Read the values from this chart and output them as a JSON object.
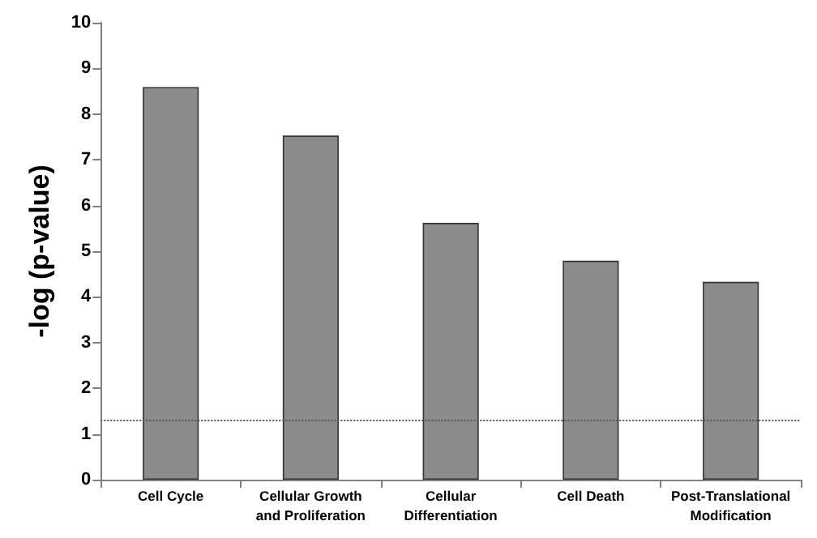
{
  "chart_data": {
    "type": "bar",
    "ylabel": "-log (p-value)",
    "categories": [
      "Cell Cycle",
      "Cellular Growth\nand Proliferation",
      "Cellular\nDifferentiation",
      "Cell Death",
      "Post-Translational\nModification"
    ],
    "values": [
      8.59,
      7.53,
      5.62,
      4.79,
      4.33
    ],
    "color": "#8c8c8c",
    "ylim": [
      0,
      10
    ],
    "yticks": [
      0,
      1,
      2,
      3,
      4,
      5,
      6,
      7,
      8,
      9,
      10
    ],
    "grid": false,
    "ref_lines": [
      {
        "axis": "y",
        "value": 1.3,
        "color": "#555555",
        "line_style": "dotted"
      }
    ]
  }
}
